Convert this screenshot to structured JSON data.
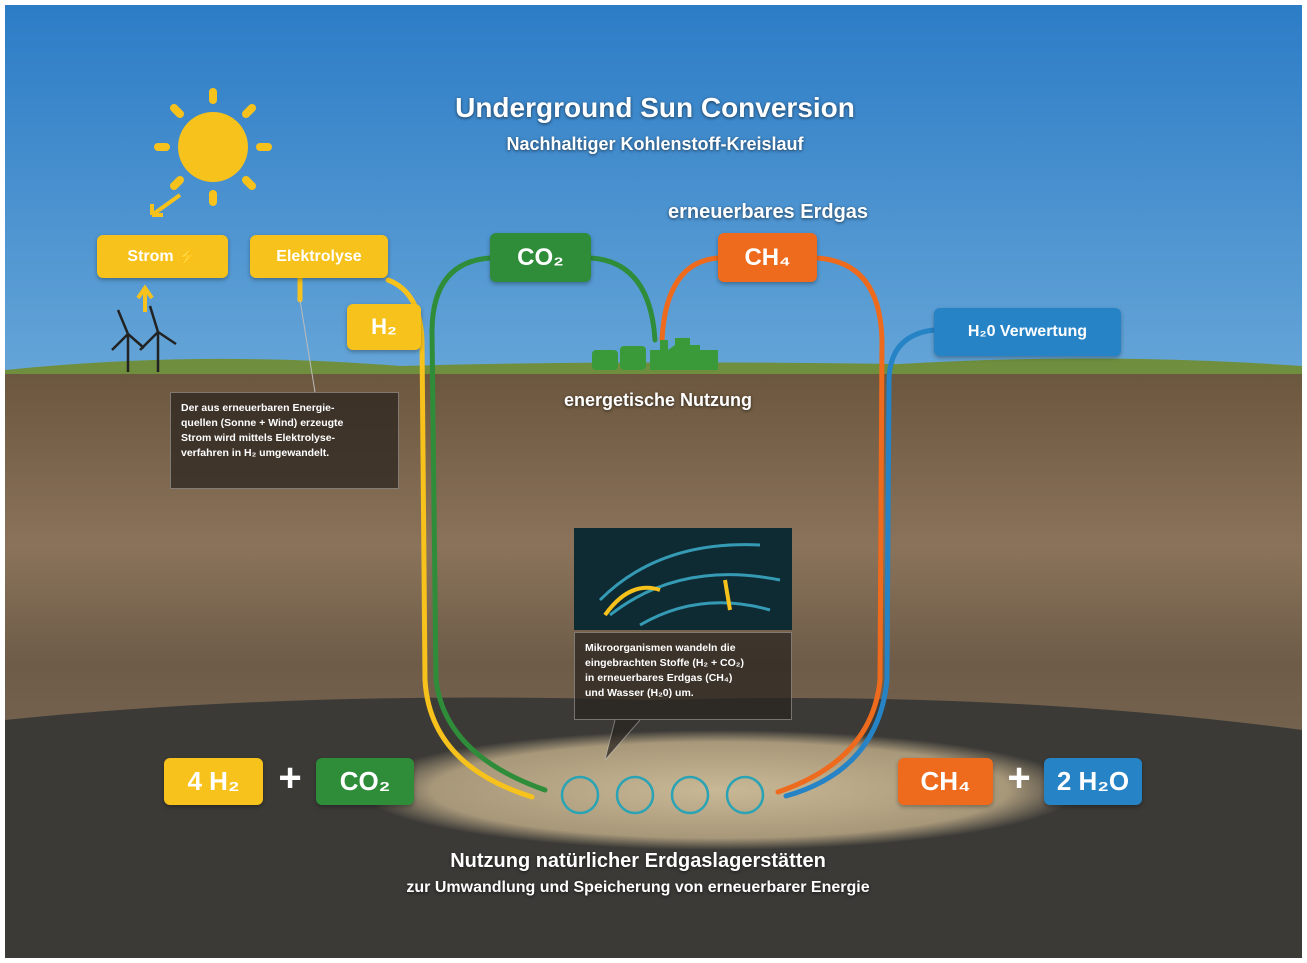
{
  "header": {
    "title": "Underground Sun Conversion",
    "subtitle": "Nachhaltiger Kohlenstoff-Kreislauf"
  },
  "top": {
    "renewable_gas": "erneuerbares Erdgas",
    "strom": "Strom",
    "elektrolyse": "Elektrolyse",
    "h2": "H₂",
    "co2": "CO₂",
    "ch4": "CH₄",
    "h2o_use": "H₂0 Verwertung",
    "energetic_use": "energetische Nutzung"
  },
  "note_left": {
    "lines": [
      "Der aus erneuerbaren Energie-",
      "quellen (Sonne + Wind) erzeugte",
      "Strom wird mittels Elektrolyse-",
      "verfahren in H₂ umgewandelt."
    ]
  },
  "note_micro": {
    "lines": [
      "Mikroorganismen wandeln die",
      "eingebrachten Stoffe (H₂ + CO₂)",
      "in erneuerbares Erdgas (CH₄)",
      "und Wasser (H₂0) um."
    ]
  },
  "equation": {
    "left": [
      "4 H₂",
      "+",
      "CO₂"
    ],
    "right": [
      "CH₄",
      "+",
      "2 H₂O"
    ]
  },
  "footer": {
    "title": "Nutzung natürlicher Erdgaslagerstätten",
    "subtitle": "zur Umwandlung und Speicherung von erneuerbarer Energie"
  }
}
